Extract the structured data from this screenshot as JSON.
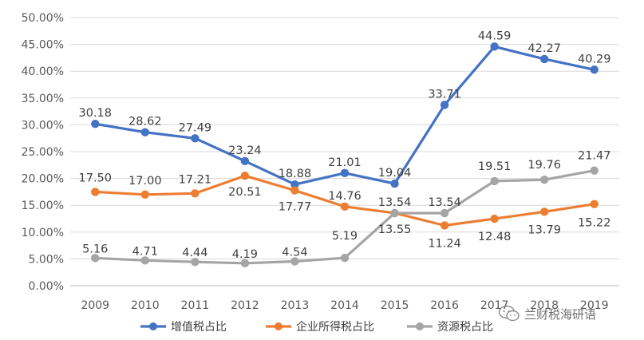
{
  "chart_data": {
    "type": "line",
    "title": "",
    "xlabel": "",
    "ylabel": "",
    "x": [
      "2009",
      "2010",
      "2011",
      "2012",
      "2013",
      "2014",
      "2015",
      "2016",
      "2017",
      "2018",
      "2019"
    ],
    "ylim": [
      0,
      50
    ],
    "y_ticks": [
      "0.00%",
      "5.00%",
      "10.00%",
      "15.00%",
      "20.00%",
      "25.00%",
      "30.00%",
      "35.00%",
      "40.00%",
      "45.00%",
      "50.00%"
    ],
    "grid": true,
    "legend_position": "bottom",
    "series": [
      {
        "name": "增值税占比",
        "color": "#4472c4",
        "values": [
          30.18,
          28.62,
          27.49,
          23.24,
          18.88,
          21.01,
          19.04,
          33.71,
          44.59,
          42.27,
          40.29
        ],
        "labels": [
          "30.18",
          "28.62",
          "27.49",
          "23.24",
          "18.88",
          "21.01",
          "19.04",
          "33.71",
          "44.59",
          "42.27",
          "40.29"
        ]
      },
      {
        "name": "企业所得税占比",
        "color": "#ed7d31",
        "values": [
          17.5,
          17.0,
          17.21,
          20.51,
          17.77,
          14.76,
          13.55,
          11.24,
          12.48,
          13.79,
          15.22
        ],
        "labels": [
          "17.50",
          "17.00",
          "17.21",
          "20.51",
          "17.77",
          "14.76",
          "13.55",
          "11.24",
          "12.48",
          "13.79",
          "15.22"
        ]
      },
      {
        "name": "资源税占比",
        "color": "#a5a5a5",
        "values": [
          5.16,
          4.71,
          4.44,
          4.19,
          4.54,
          5.19,
          13.54,
          13.54,
          19.51,
          19.76,
          21.47
        ],
        "labels": [
          "5.16",
          "4.71",
          "4.44",
          "4.19",
          "4.54",
          "5.19",
          "13.54",
          "13.54",
          "19.51",
          "19.76",
          "21.47"
        ]
      }
    ]
  },
  "watermark": {
    "text": "兰财税海研语",
    "icon": "wechat-icon"
  }
}
